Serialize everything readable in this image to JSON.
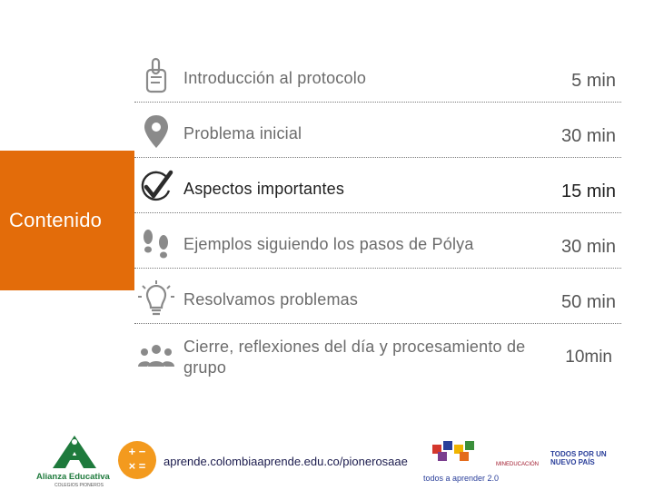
{
  "side_tab": {
    "label": "Contenido",
    "color": "#e36c0a"
  },
  "agenda": [
    {
      "icon": "finger-count-icon",
      "label": "Introducción al protocolo",
      "time": "5 min"
    },
    {
      "icon": "map-pin-icon",
      "label": "Problema inicial",
      "time": "30 min"
    },
    {
      "icon": "checkmark-icon",
      "label": "Aspectos importantes",
      "time": "15 min",
      "active": true
    },
    {
      "icon": "footprints-icon",
      "label": "Ejemplos siguiendo los pasos de Pólya",
      "time": "30 min"
    },
    {
      "icon": "lightbulb-icon",
      "label": "Resolvamos problemas",
      "time": "50 min"
    },
    {
      "icon": "group-icon",
      "label": "Cierre, reflexiones del día y procesamiento de grupo",
      "time": "10min"
    }
  ],
  "footer": {
    "alianza_brand": "Alianza Educativa",
    "alianza_tag": "COLEGIOS PIONEROS",
    "calc_symbols": "+ −\n× =",
    "url": "aprende.colombiaaprende.edu.co/pionerosaae",
    "todos_label": "todos a aprender 2.0",
    "mineducacion_label": "MINEDUCACIÓN",
    "nuevo_pais_label": "TODOS POR UN NUEVO PAÍS"
  }
}
